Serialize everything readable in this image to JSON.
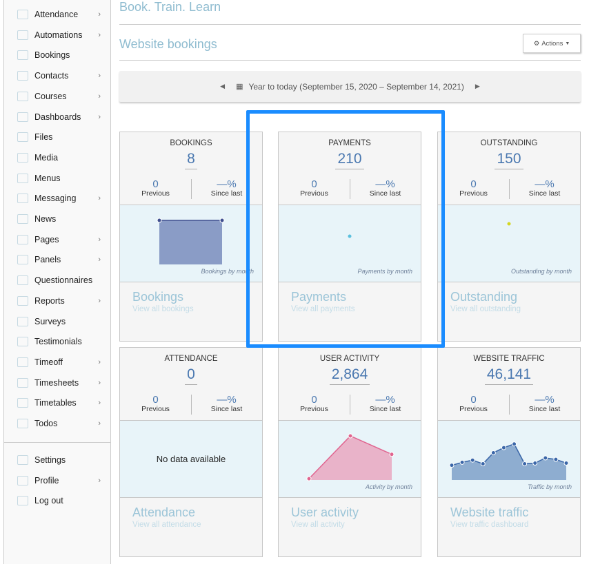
{
  "sidebar": {
    "items": [
      {
        "label": "Attendance",
        "icon": "attendance-icon",
        "chevron": true
      },
      {
        "label": "Automations",
        "icon": "bell-icon",
        "chevron": true
      },
      {
        "label": "Bookings",
        "icon": "tag-icon",
        "chevron": false
      },
      {
        "label": "Contacts",
        "icon": "contacts-icon",
        "chevron": true
      },
      {
        "label": "Courses",
        "icon": "courses-icon",
        "chevron": true
      },
      {
        "label": "Dashboards",
        "icon": "dashboard-icon",
        "chevron": true
      },
      {
        "label": "Files",
        "icon": "folder-icon",
        "chevron": false
      },
      {
        "label": "Media",
        "icon": "media-icon",
        "chevron": false
      },
      {
        "label": "Menus",
        "icon": "menu-icon",
        "chevron": false
      },
      {
        "label": "Messaging",
        "icon": "chat-icon",
        "chevron": true
      },
      {
        "label": "News",
        "icon": "news-icon",
        "chevron": false
      },
      {
        "label": "Pages",
        "icon": "pages-icon",
        "chevron": true
      },
      {
        "label": "Panels",
        "icon": "panels-icon",
        "chevron": true
      },
      {
        "label": "Questionnaires",
        "icon": "clipboard-icon",
        "chevron": false
      },
      {
        "label": "Reports",
        "icon": "chart-icon",
        "chevron": true
      },
      {
        "label": "Surveys",
        "icon": "survey-icon",
        "chevron": false
      },
      {
        "label": "Testimonials",
        "icon": "testimonial-icon",
        "chevron": false
      },
      {
        "label": "Timeoff",
        "icon": "globe-icon",
        "chevron": true
      },
      {
        "label": "Timesheets",
        "icon": "timesheet-icon",
        "chevron": true
      },
      {
        "label": "Timetables",
        "icon": "calendar-icon",
        "chevron": true
      },
      {
        "label": "Todos",
        "icon": "todo-icon",
        "chevron": true
      }
    ],
    "bottom": [
      {
        "label": "Settings",
        "icon": "gear-icon",
        "chevron": false
      },
      {
        "label": "Profile",
        "icon": "user-icon",
        "chevron": true
      },
      {
        "label": "Log out",
        "icon": "logout-icon",
        "chevron": false
      }
    ]
  },
  "brand": "Book. Train. Learn",
  "page_title": "Website bookings",
  "actions_label": "Actions",
  "date_range": "Year to today (September 15, 2020 – September 14, 2021)",
  "highlight_color": "#1a8cff",
  "cards": [
    {
      "title": "BOOKINGS",
      "value": "8",
      "previous": "0",
      "previous_label": "Previous",
      "since": "—%",
      "since_label": "Since last",
      "chart_label": "Bookings by month",
      "footer_title": "Bookings",
      "footer_link": "View all bookings",
      "chart": {
        "type": "area",
        "color": "#8a9cc6",
        "stroke": "#3f4f8f",
        "values": [
          1,
          1
        ]
      }
    },
    {
      "title": "PAYMENTS",
      "value": "210",
      "previous": "0",
      "previous_label": "Previous",
      "since": "—%",
      "since_label": "Since last",
      "chart_label": "Payments by month",
      "footer_title": "Payments",
      "footer_link": "View all payments",
      "chart": {
        "type": "point",
        "color": "#5bc0de",
        "values": [
          1
        ]
      }
    },
    {
      "title": "OUTSTANDING",
      "value": "150",
      "previous": "0",
      "previous_label": "Previous",
      "since": "—%",
      "since_label": "Since last",
      "chart_label": "Outstanding by month",
      "footer_title": "Outstanding",
      "footer_link": "View all outstanding",
      "chart": {
        "type": "point",
        "color": "#d4d620",
        "values": [
          1
        ]
      }
    },
    {
      "title": "ATTENDANCE",
      "value": "0",
      "previous": "0",
      "previous_label": "Previous",
      "since": "—%",
      "since_label": "Since last",
      "no_data": "No data available",
      "footer_title": "Attendance",
      "footer_link": "View all attendance",
      "chart": null
    },
    {
      "title": "USER ACTIVITY",
      "value": "2,864",
      "previous": "0",
      "previous_label": "Previous",
      "since": "—%",
      "since_label": "Since last",
      "chart_label": "Activity by month",
      "footer_title": "User activity",
      "footer_link": "View all activity",
      "chart": {
        "type": "area",
        "color": "#e9b3c9",
        "stroke": "#e0648f",
        "values": [
          2,
          67,
          39
        ]
      }
    },
    {
      "title": "WEBSITE TRAFFIC",
      "value": "46,141",
      "previous": "0",
      "previous_label": "Previous",
      "since": "—%",
      "since_label": "Since last",
      "chart_label": "Traffic by month",
      "footer_title": "Website traffic",
      "footer_link": "View traffic dashboard",
      "chart": {
        "type": "area",
        "color": "#8eadd0",
        "stroke": "#3a66a8",
        "values": [
          20,
          24,
          27,
          22,
          37,
          44,
          49,
          22,
          23,
          30,
          28,
          23
        ]
      }
    }
  ]
}
